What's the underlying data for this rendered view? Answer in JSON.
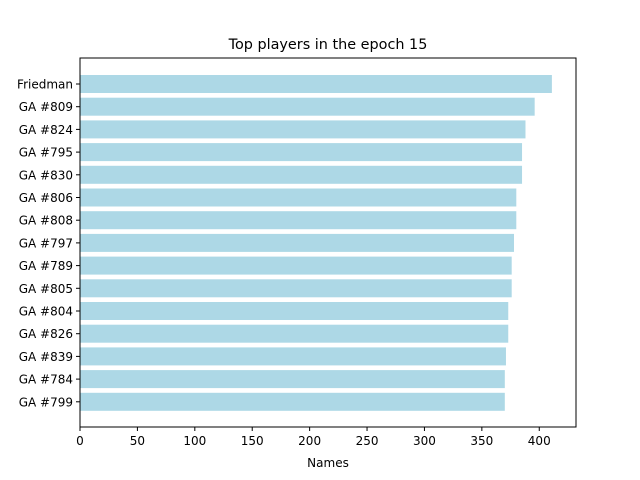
{
  "chart_data": {
    "type": "bar",
    "orientation": "horizontal",
    "title": "Top players in the epoch 15",
    "xlabel": "Names",
    "ylabel": "",
    "categories": [
      "Friedman",
      "GA #809",
      "GA #824",
      "GA #795",
      "GA #830",
      "GA #806",
      "GA #808",
      "GA #797",
      "GA #789",
      "GA #805",
      "GA #804",
      "GA #826",
      "GA #839",
      "GA #784",
      "GA #799"
    ],
    "values": [
      411,
      396,
      388,
      385,
      385,
      380,
      380,
      378,
      376,
      376,
      373,
      373,
      371,
      370,
      370
    ],
    "xlim": [
      0,
      432
    ],
    "xticks": [
      0,
      50,
      100,
      150,
      200,
      250,
      300,
      350,
      400
    ],
    "bar_color": "#add8e6",
    "grid": false,
    "legend": "none"
  }
}
